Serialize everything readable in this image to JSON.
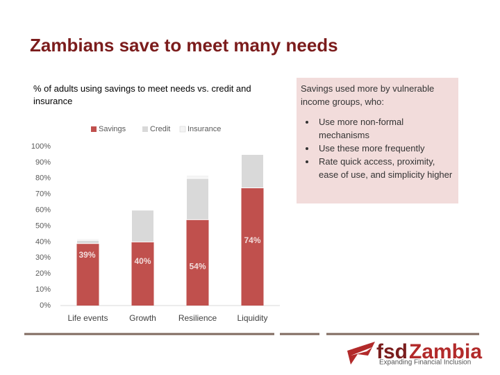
{
  "slide": {
    "title": "Zambians save to meet many needs",
    "side_box": {
      "heading": "Savings used more by vulnerable income groups, who:",
      "bullets": [
        "Use more non-formal mechanisms",
        "Use these more frequently",
        "Rate quick access, proximity, ease of use, and simplicity higher"
      ]
    },
    "logo": {
      "part1": "fsd",
      "part2": "Zambia",
      "tagline": "Expanding Financial Inclusion"
    }
  },
  "chart_data": {
    "type": "stacked_bar",
    "title": "% of adults using savings to meet needs  vs. credit and insurance",
    "categories": [
      "Life events",
      "Growth",
      "Resilience",
      "Liquidity"
    ],
    "series": [
      {
        "name": "Savings",
        "color": "#c0504d",
        "values": [
          39,
          40,
          54,
          74
        ],
        "value_labels": [
          "39%",
          "40%",
          "54%",
          "74%"
        ]
      },
      {
        "name": "Credit",
        "color": "#d9d9d9",
        "values": [
          2,
          20,
          26,
          21
        ]
      },
      {
        "name": "Insurance",
        "color": "#f4f4f4",
        "values": [
          1,
          0,
          2,
          0
        ]
      }
    ],
    "ylim": [
      0,
      100
    ],
    "yticks": [
      {
        "value": 0,
        "label": "0%"
      },
      {
        "value": 10,
        "label": "10%"
      },
      {
        "value": 20,
        "label": "20%"
      },
      {
        "value": 30,
        "label": "30%"
      },
      {
        "value": 40,
        "label": "40%"
      },
      {
        "value": 50,
        "label": "50%"
      },
      {
        "value": 60,
        "label": "60%"
      },
      {
        "value": 70,
        "label": "70%"
      },
      {
        "value": 80,
        "label": "80%"
      },
      {
        "value": 90,
        "label": "90%"
      },
      {
        "value": 100,
        "label": "100%"
      }
    ],
    "legend": "top"
  }
}
